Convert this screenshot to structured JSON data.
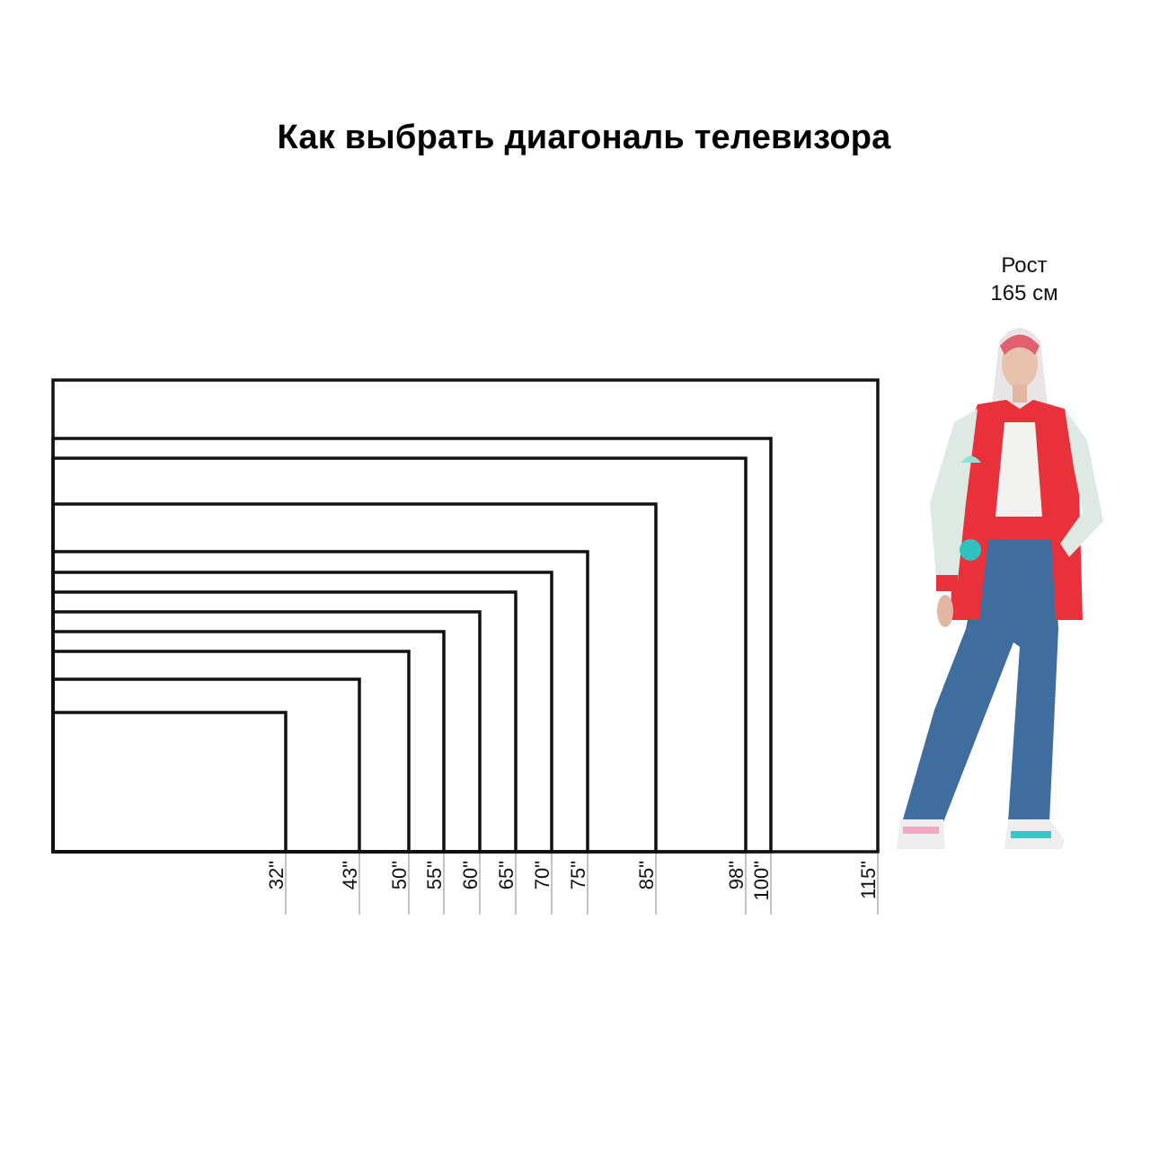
{
  "title": "Как выбрать диагональ телевизора",
  "person": {
    "height_label_line1": "Рост",
    "height_label_line2": "165 см",
    "height_cm": 165,
    "jacket_color": "#e8313a",
    "jeans_color": "#3f6e9e"
  },
  "tv_aspect": "16:9",
  "diagonals": [
    {
      "inches": 32,
      "label": "32\""
    },
    {
      "inches": 43,
      "label": "43\""
    },
    {
      "inches": 50,
      "label": "50\""
    },
    {
      "inches": 55,
      "label": "55\""
    },
    {
      "inches": 60,
      "label": "60\""
    },
    {
      "inches": 65,
      "label": "65\""
    },
    {
      "inches": 70,
      "label": "70\""
    },
    {
      "inches": 75,
      "label": "75\""
    },
    {
      "inches": 85,
      "label": "85\""
    },
    {
      "inches": 98,
      "label": "98\""
    },
    {
      "inches": 100,
      "label": "100\""
    },
    {
      "inches": 115,
      "label": "115\""
    }
  ],
  "colors": {
    "outline": "#111111",
    "tick": "#b0b0b0"
  }
}
